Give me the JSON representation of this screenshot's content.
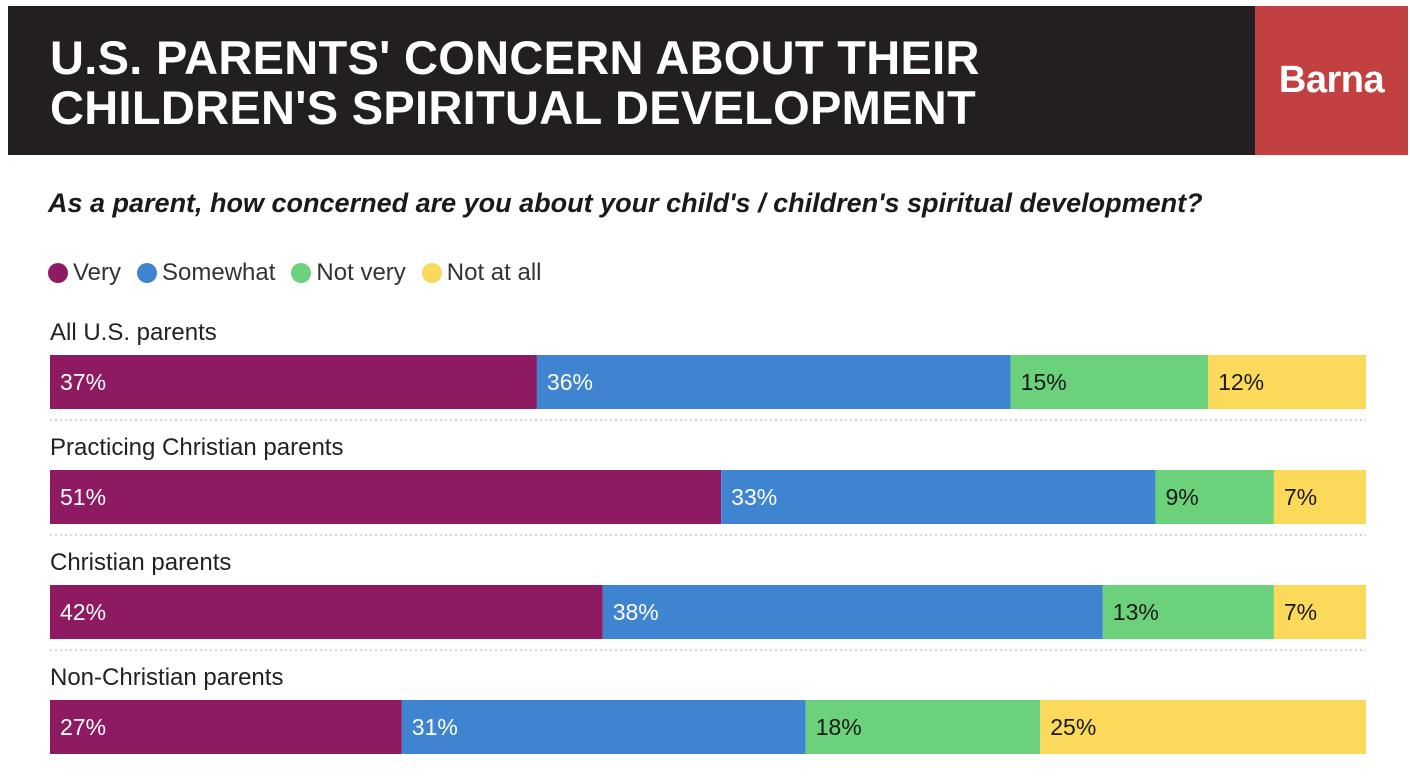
{
  "header": {
    "title_line1": "U.S. PARENTS' CONCERN ABOUT THEIR",
    "title_line2": "CHILDREN'S SPIRITUAL DEVELOPMENT",
    "brand": "Barna"
  },
  "chart_data": {
    "type": "bar",
    "orientation": "horizontal",
    "stacked": true,
    "percent_stacked": true,
    "title": "U.S. PARENTS' CONCERN ABOUT THEIR CHILDREN'S SPIRITUAL DEVELOPMENT",
    "subtitle": "As a parent, how concerned are you about your child's / children's spiritual development?",
    "legend_placement": "top-left",
    "categories": [
      "All U.S. parents",
      "Practicing Christian parents",
      "Christian parents",
      "Non-Christian parents"
    ],
    "series": [
      {
        "name": "Very",
        "color": "#8e1b62",
        "values": [
          37,
          51,
          42,
          27
        ]
      },
      {
        "name": "Somewhat",
        "color": "#3f84d0",
        "values": [
          36,
          33,
          38,
          31
        ]
      },
      {
        "name": "Not very",
        "color": "#6bd17b",
        "values": [
          15,
          9,
          13,
          18
        ]
      },
      {
        "name": "Not at all",
        "color": "#fbd95a",
        "values": [
          12,
          7,
          7,
          25
        ]
      }
    ],
    "label_colors": [
      "#ffffff",
      "#ffffff",
      "#1a1a1a",
      "#1a1a1a"
    ],
    "value_suffix": "%"
  }
}
